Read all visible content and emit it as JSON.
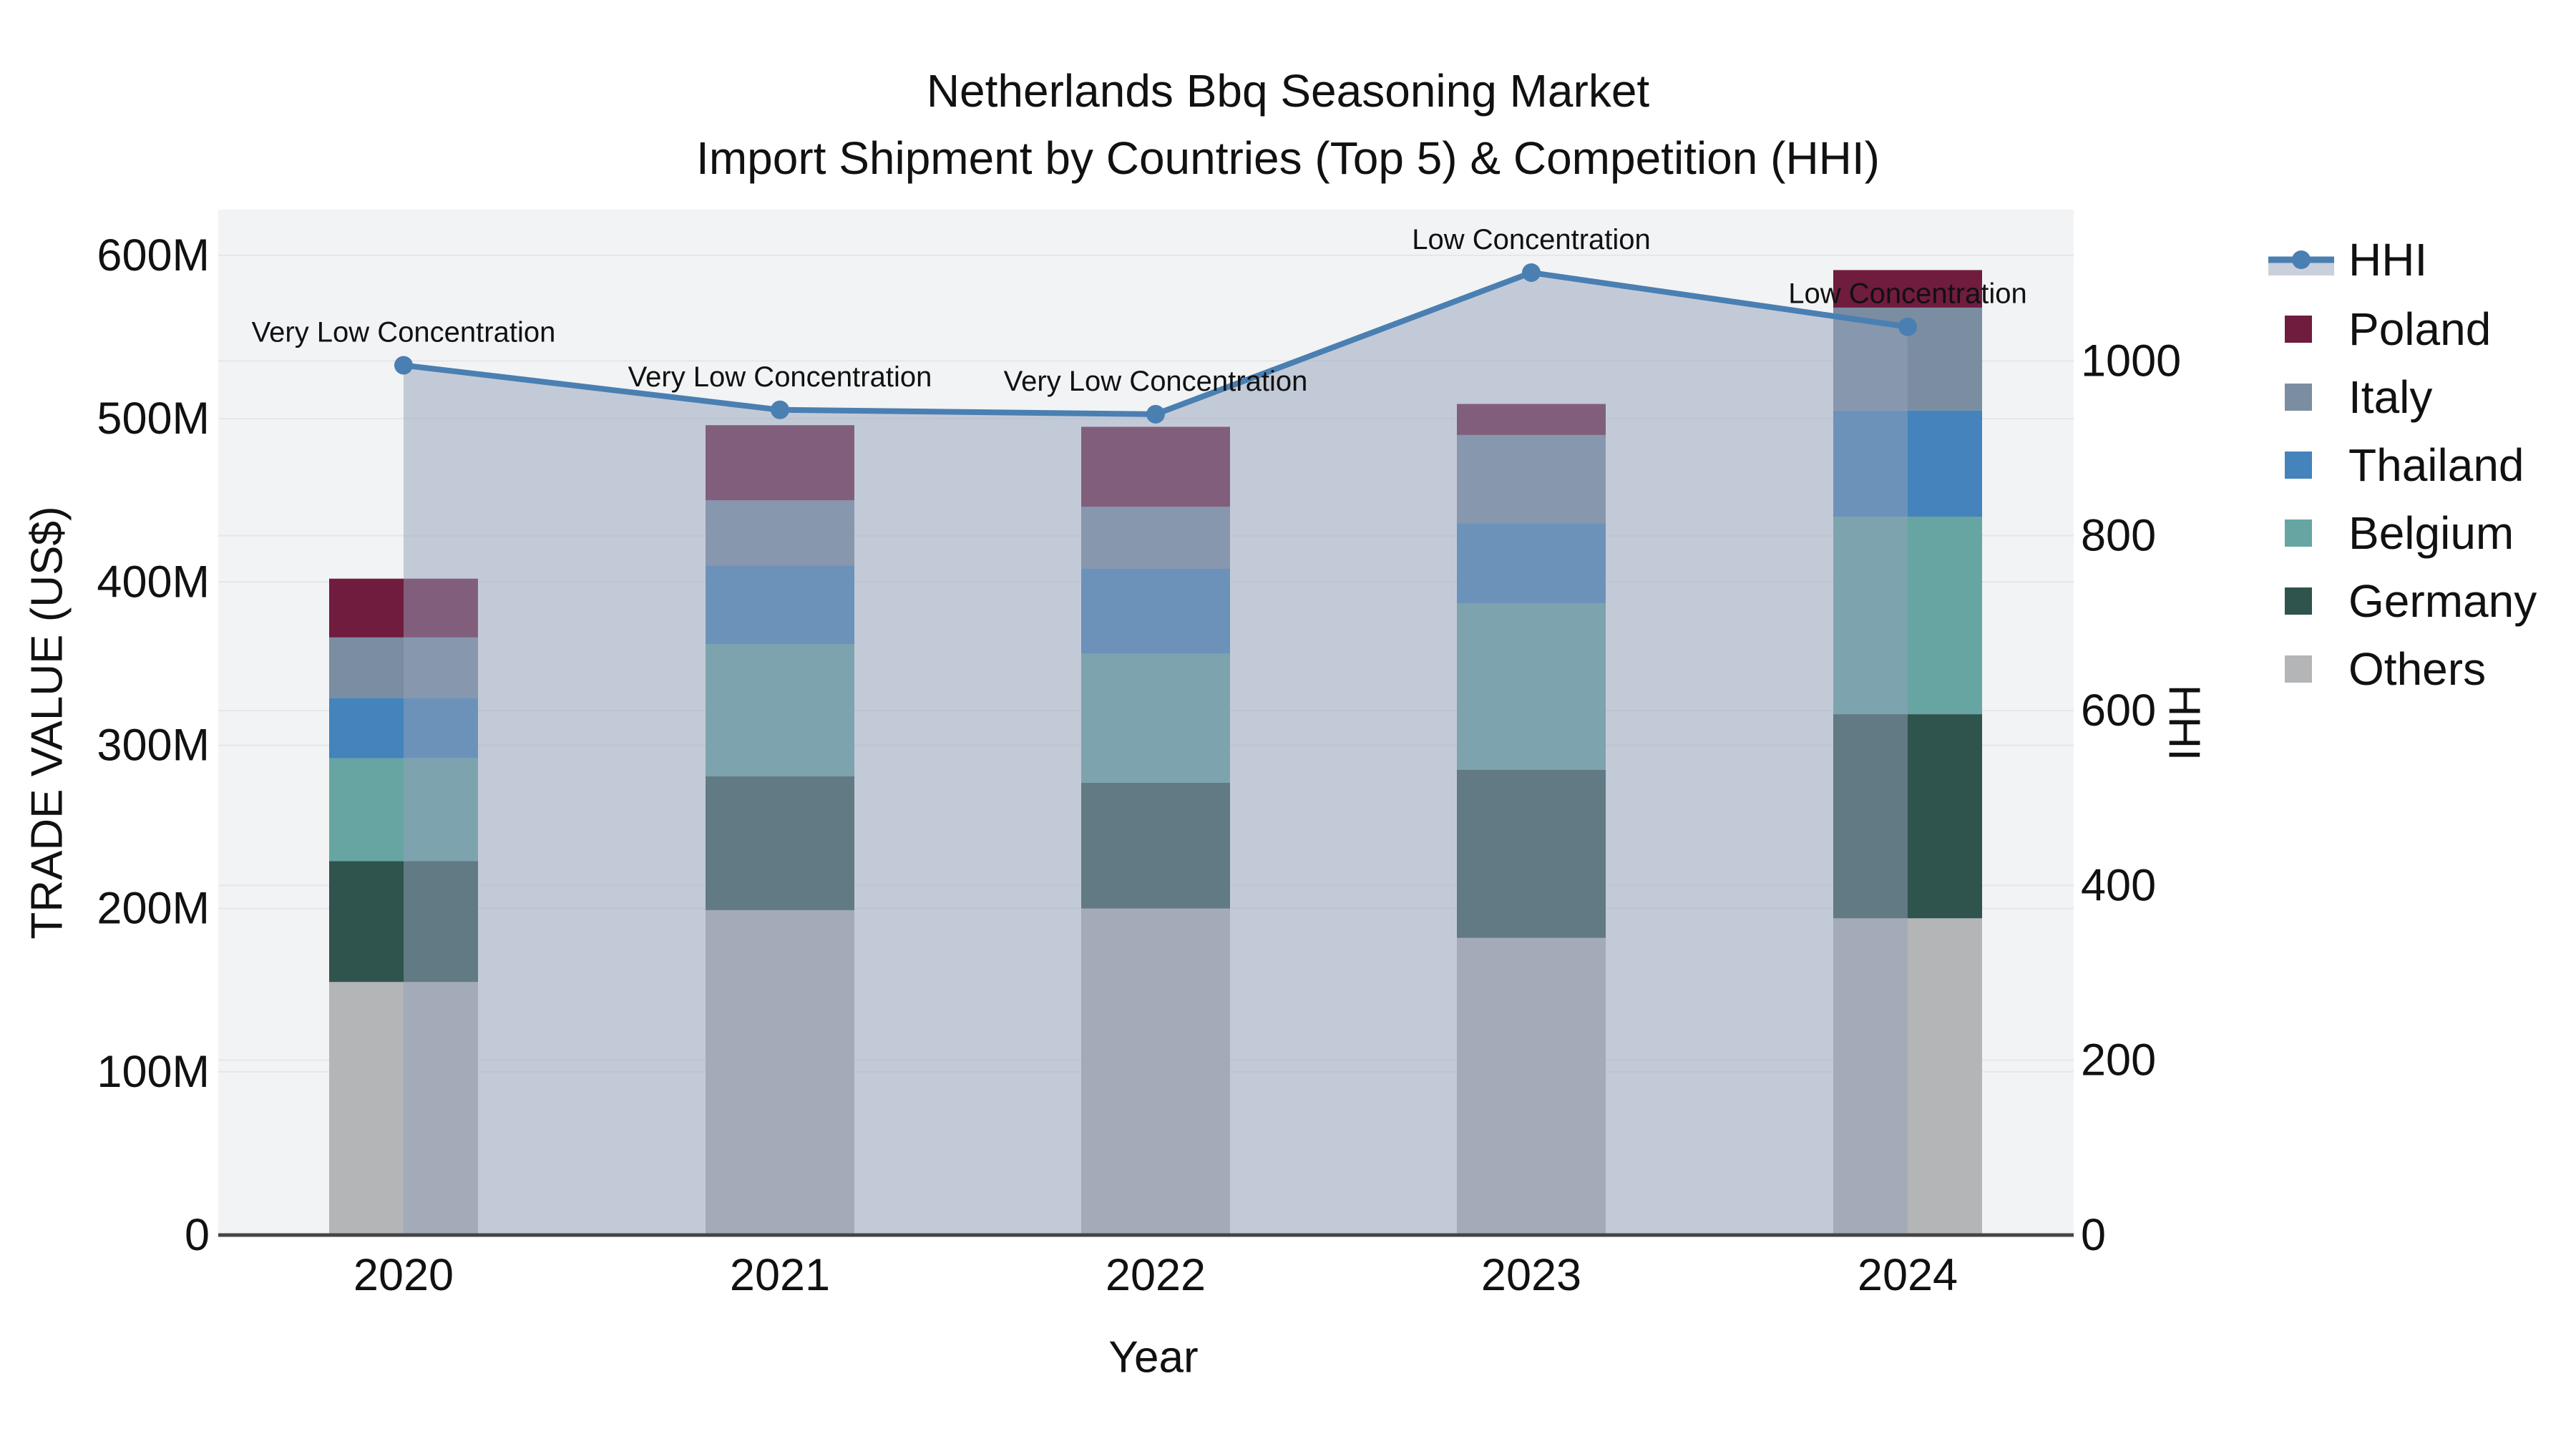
{
  "title": {
    "line1": "Netherlands Bbq Seasoning Market",
    "line2": "Import Shipment by Countries (Top 5) & Competition (HHI)"
  },
  "axes": {
    "x": {
      "title": "Year",
      "ticks": [
        "2020",
        "2021",
        "2022",
        "2023",
        "2024"
      ]
    },
    "y": {
      "title": "TRADE VALUE (US$)",
      "ticks": [
        "0",
        "100M",
        "200M",
        "300M",
        "400M",
        "500M",
        "600M"
      ]
    },
    "y2": {
      "title": "HHI",
      "ticks": [
        "0",
        "200",
        "400",
        "600",
        "800",
        "1000"
      ]
    }
  },
  "legend": {
    "position": "right",
    "items": [
      {
        "label": "HHI",
        "symbol": "line-marker-with-area",
        "color": "#4a7fb2"
      },
      {
        "label": "Poland",
        "symbol": "square",
        "color": "#6f1c3f"
      },
      {
        "label": "Italy",
        "symbol": "square",
        "color": "#7b8da1"
      },
      {
        "label": "Thailand",
        "symbol": "square",
        "color": "#4483bb"
      },
      {
        "label": "Belgium",
        "symbol": "square",
        "color": "#66a5a2"
      },
      {
        "label": "Germany",
        "symbol": "square",
        "color": "#2f534d"
      },
      {
        "label": "Others",
        "symbol": "square",
        "color": "#b3b5b7"
      }
    ]
  },
  "colors": {
    "hhi_line": "#4a7fb2",
    "hhi_area_fill": "rgba(147,162,185,0.5)",
    "plot_background": "#f2f3f4",
    "gridline": "#e4e6e9",
    "axis_line": "#444444",
    "text": "#111111"
  },
  "chart_data": [
    {
      "type": "bar",
      "stacked": true,
      "title": "Netherlands Bbq Seasoning Market — Import Shipment by Countries (Top 5) & Competition (HHI)",
      "xlabel": "Year",
      "ylabel": "TRADE VALUE (US$)",
      "unit": "Million US$",
      "categories": [
        "2020",
        "2021",
        "2022",
        "2023",
        "2024"
      ],
      "stack_order_bottom_to_top": [
        "Others",
        "Germany",
        "Belgium",
        "Thailand",
        "Italy",
        "Poland"
      ],
      "series": [
        {
          "name": "Others",
          "color": "#b3b5b7",
          "values": [
            155,
            199,
            200,
            182,
            194
          ]
        },
        {
          "name": "Germany",
          "color": "#2f534d",
          "values": [
            74,
            82,
            77,
            103,
            125
          ]
        },
        {
          "name": "Belgium",
          "color": "#66a5a2",
          "values": [
            63,
            81,
            79,
            102,
            121
          ]
        },
        {
          "name": "Thailand",
          "color": "#4483bb",
          "values": [
            37,
            48,
            52,
            49,
            65
          ]
        },
        {
          "name": "Italy",
          "color": "#7b8da1",
          "values": [
            37,
            40,
            38,
            54,
            63
          ]
        },
        {
          "name": "Poland",
          "color": "#6f1c3f",
          "values": [
            36,
            46,
            49,
            19,
            23
          ]
        }
      ],
      "totals": [
        402,
        496,
        495,
        509,
        591
      ],
      "ylim": [
        0,
        628
      ],
      "grid": true,
      "legend_position": "right"
    },
    {
      "type": "line",
      "name": "HHI",
      "yaxis": "right",
      "ylabel": "HHI",
      "x": [
        "2020",
        "2021",
        "2022",
        "2023",
        "2024"
      ],
      "values": [
        995,
        944,
        939,
        1101,
        1039
      ],
      "color": "#4a7fb2",
      "area_fill": "rgba(147,162,185,0.5)",
      "markers": true,
      "ylim": [
        0,
        1173
      ],
      "annotations": [
        {
          "x": "2020",
          "text": "Very Low Concentration"
        },
        {
          "x": "2021",
          "text": "Very Low Concentration"
        },
        {
          "x": "2022",
          "text": "Very Low Concentration"
        },
        {
          "x": "2023",
          "text": "Low Concentration"
        },
        {
          "x": "2024",
          "text": "Low Concentration"
        }
      ]
    }
  ]
}
